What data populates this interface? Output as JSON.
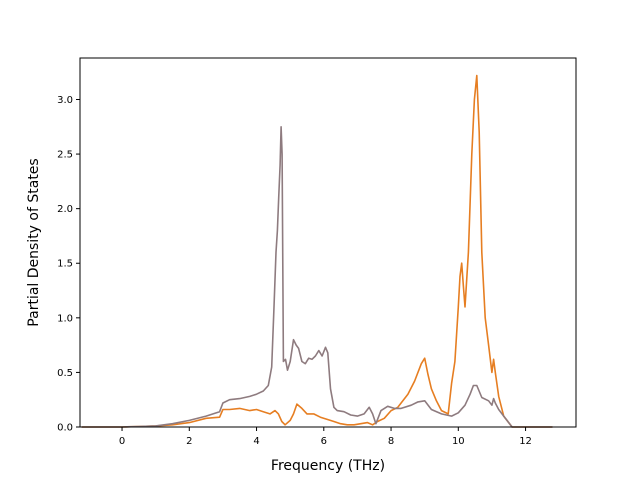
{
  "chart_data": {
    "type": "line",
    "title": "",
    "xlabel": "Frequency (THz)",
    "ylabel": "Partial Density of States",
    "xlim": [
      -1.25,
      13.5
    ],
    "ylim": [
      0,
      3.38
    ],
    "xticks": [
      0,
      2,
      4,
      6,
      8,
      10,
      12
    ],
    "yticks": [
      0.0,
      0.5,
      1.0,
      1.5,
      2.0,
      2.5,
      3.0
    ],
    "xtick_labels": [
      "0",
      "2",
      "4",
      "6",
      "8",
      "10",
      "12"
    ],
    "ytick_labels": [
      "0.0",
      "0.5",
      "1.0",
      "1.5",
      "2.0",
      "2.5",
      "3.0"
    ],
    "grid": false,
    "legend": "none",
    "series": [
      {
        "color": "#e67e22",
        "x": [
          -1.2,
          -0.5,
          0,
          0.5,
          1,
          1.5,
          2,
          2.5,
          2.9,
          3.0,
          3.2,
          3.5,
          3.8,
          4.0,
          4.2,
          4.4,
          4.55,
          4.65,
          4.75,
          4.85,
          5.0,
          5.1,
          5.2,
          5.35,
          5.5,
          5.7,
          5.9,
          6.1,
          6.3,
          6.5,
          6.7,
          6.9,
          7.1,
          7.3,
          7.45,
          7.6,
          7.8,
          8.0,
          8.2,
          8.5,
          8.7,
          8.9,
          9.0,
          9.1,
          9.2,
          9.35,
          9.5,
          9.7,
          9.8,
          9.9,
          10.0,
          10.05,
          10.1,
          10.15,
          10.2,
          10.3,
          10.4,
          10.48,
          10.55,
          10.62,
          10.7,
          10.8,
          10.9,
          11.0,
          11.05,
          11.1,
          11.2,
          11.35,
          11.5,
          11.6,
          12.0,
          12.8
        ],
        "y": [
          0.0,
          0.0,
          0.0,
          0.005,
          0.01,
          0.02,
          0.04,
          0.08,
          0.09,
          0.16,
          0.16,
          0.17,
          0.15,
          0.16,
          0.14,
          0.12,
          0.15,
          0.12,
          0.05,
          0.02,
          0.06,
          0.12,
          0.21,
          0.17,
          0.12,
          0.12,
          0.09,
          0.07,
          0.05,
          0.03,
          0.02,
          0.02,
          0.03,
          0.04,
          0.02,
          0.05,
          0.08,
          0.15,
          0.18,
          0.3,
          0.42,
          0.58,
          0.63,
          0.48,
          0.35,
          0.24,
          0.15,
          0.12,
          0.4,
          0.6,
          1.1,
          1.38,
          1.5,
          1.3,
          1.1,
          1.6,
          2.5,
          3.0,
          3.22,
          2.7,
          1.6,
          1.0,
          0.75,
          0.5,
          0.62,
          0.5,
          0.28,
          0.1,
          0.04,
          0.0,
          0.0,
          0.0
        ]
      },
      {
        "color": "#8e7b7f",
        "x": [
          -1.2,
          -0.5,
          0,
          0.5,
          1,
          1.5,
          2,
          2.5,
          2.9,
          3.0,
          3.2,
          3.5,
          3.8,
          4.0,
          4.2,
          4.35,
          4.45,
          4.52,
          4.58,
          4.62,
          4.66,
          4.7,
          4.73,
          4.76,
          4.8,
          4.86,
          4.92,
          5.0,
          5.1,
          5.18,
          5.25,
          5.35,
          5.45,
          5.55,
          5.65,
          5.75,
          5.85,
          5.95,
          6.05,
          6.12,
          6.2,
          6.3,
          6.4,
          6.6,
          6.8,
          7.0,
          7.2,
          7.35,
          7.45,
          7.55,
          7.7,
          7.9,
          8.1,
          8.3,
          8.6,
          8.8,
          9.0,
          9.2,
          9.5,
          9.8,
          10.0,
          10.2,
          10.35,
          10.45,
          10.55,
          10.7,
          10.9,
          11.0,
          11.05,
          11.1,
          11.2,
          11.35,
          11.5,
          11.6,
          12.0,
          12.8
        ],
        "y": [
          0.0,
          0.0,
          0.0,
          0.005,
          0.01,
          0.03,
          0.06,
          0.1,
          0.14,
          0.22,
          0.25,
          0.26,
          0.28,
          0.3,
          0.33,
          0.38,
          0.55,
          1.1,
          1.6,
          1.8,
          2.1,
          2.4,
          2.75,
          2.5,
          0.6,
          0.62,
          0.52,
          0.6,
          0.8,
          0.75,
          0.72,
          0.6,
          0.58,
          0.63,
          0.62,
          0.65,
          0.7,
          0.65,
          0.73,
          0.68,
          0.35,
          0.18,
          0.15,
          0.14,
          0.11,
          0.1,
          0.12,
          0.18,
          0.12,
          0.03,
          0.15,
          0.19,
          0.17,
          0.17,
          0.2,
          0.23,
          0.24,
          0.16,
          0.12,
          0.1,
          0.13,
          0.2,
          0.3,
          0.38,
          0.38,
          0.27,
          0.24,
          0.2,
          0.26,
          0.22,
          0.16,
          0.1,
          0.04,
          0.0,
          0.0,
          0.0
        ]
      }
    ]
  }
}
